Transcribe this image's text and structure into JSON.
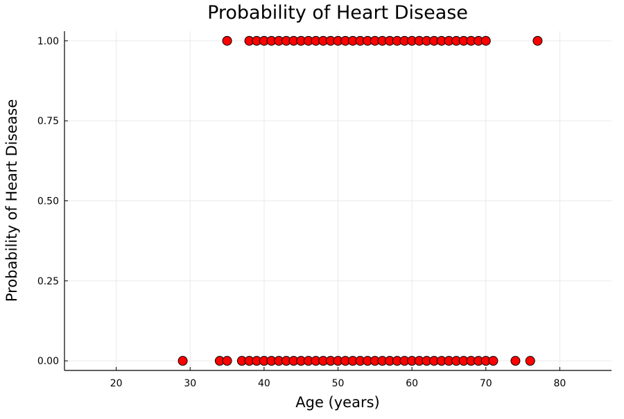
{
  "chart_data": {
    "type": "scatter",
    "title": "Probability of Heart Disease",
    "xlabel": "Age (years)",
    "ylabel": "Probability of Heart Disease",
    "xlim": [
      13,
      87
    ],
    "ylim": [
      -0.03,
      1.03
    ],
    "x_ticks": [
      20,
      30,
      40,
      50,
      60,
      70,
      80
    ],
    "x_tick_labels": [
      "20",
      "30",
      "40",
      "50",
      "60",
      "70",
      "80"
    ],
    "y_ticks": [
      0,
      0.25,
      0.5,
      0.75,
      1.0
    ],
    "y_tick_labels": [
      "0.00",
      "0.25",
      "0.50",
      "0.75",
      "1.00"
    ],
    "grid": true,
    "legend": "none",
    "colors": {
      "marker": "#ff0000",
      "marker_edge": "#000000",
      "grid": "#e9e9e9"
    },
    "series": [
      {
        "marker": "circle",
        "points": [
          {
            "x": 35,
            "y": 1
          },
          {
            "x": 38,
            "y": 1
          },
          {
            "x": 39,
            "y": 1
          },
          {
            "x": 40,
            "y": 1
          },
          {
            "x": 41,
            "y": 1
          },
          {
            "x": 42,
            "y": 1
          },
          {
            "x": 43,
            "y": 1
          },
          {
            "x": 44,
            "y": 1
          },
          {
            "x": 45,
            "y": 1
          },
          {
            "x": 46,
            "y": 1
          },
          {
            "x": 47,
            "y": 1
          },
          {
            "x": 48,
            "y": 1
          },
          {
            "x": 49,
            "y": 1
          },
          {
            "x": 50,
            "y": 1
          },
          {
            "x": 51,
            "y": 1
          },
          {
            "x": 52,
            "y": 1
          },
          {
            "x": 53,
            "y": 1
          },
          {
            "x": 54,
            "y": 1
          },
          {
            "x": 55,
            "y": 1
          },
          {
            "x": 56,
            "y": 1
          },
          {
            "x": 57,
            "y": 1
          },
          {
            "x": 58,
            "y": 1
          },
          {
            "x": 59,
            "y": 1
          },
          {
            "x": 60,
            "y": 1
          },
          {
            "x": 61,
            "y": 1
          },
          {
            "x": 62,
            "y": 1
          },
          {
            "x": 63,
            "y": 1
          },
          {
            "x": 64,
            "y": 1
          },
          {
            "x": 65,
            "y": 1
          },
          {
            "x": 66,
            "y": 1
          },
          {
            "x": 67,
            "y": 1
          },
          {
            "x": 68,
            "y": 1
          },
          {
            "x": 69,
            "y": 1
          },
          {
            "x": 70,
            "y": 1
          },
          {
            "x": 77,
            "y": 1
          },
          {
            "x": 29,
            "y": 0
          },
          {
            "x": 34,
            "y": 0
          },
          {
            "x": 35,
            "y": 0
          },
          {
            "x": 37,
            "y": 0
          },
          {
            "x": 38,
            "y": 0
          },
          {
            "x": 39,
            "y": 0
          },
          {
            "x": 40,
            "y": 0
          },
          {
            "x": 41,
            "y": 0
          },
          {
            "x": 42,
            "y": 0
          },
          {
            "x": 43,
            "y": 0
          },
          {
            "x": 44,
            "y": 0
          },
          {
            "x": 45,
            "y": 0
          },
          {
            "x": 46,
            "y": 0
          },
          {
            "x": 47,
            "y": 0
          },
          {
            "x": 48,
            "y": 0
          },
          {
            "x": 49,
            "y": 0
          },
          {
            "x": 50,
            "y": 0
          },
          {
            "x": 51,
            "y": 0
          },
          {
            "x": 52,
            "y": 0
          },
          {
            "x": 53,
            "y": 0
          },
          {
            "x": 54,
            "y": 0
          },
          {
            "x": 55,
            "y": 0
          },
          {
            "x": 56,
            "y": 0
          },
          {
            "x": 57,
            "y": 0
          },
          {
            "x": 58,
            "y": 0
          },
          {
            "x": 59,
            "y": 0
          },
          {
            "x": 60,
            "y": 0
          },
          {
            "x": 61,
            "y": 0
          },
          {
            "x": 62,
            "y": 0
          },
          {
            "x": 63,
            "y": 0
          },
          {
            "x": 64,
            "y": 0
          },
          {
            "x": 65,
            "y": 0
          },
          {
            "x": 66,
            "y": 0
          },
          {
            "x": 67,
            "y": 0
          },
          {
            "x": 68,
            "y": 0
          },
          {
            "x": 69,
            "y": 0
          },
          {
            "x": 70,
            "y": 0
          },
          {
            "x": 71,
            "y": 0
          },
          {
            "x": 74,
            "y": 0
          },
          {
            "x": 76,
            "y": 0
          }
        ]
      }
    ]
  }
}
